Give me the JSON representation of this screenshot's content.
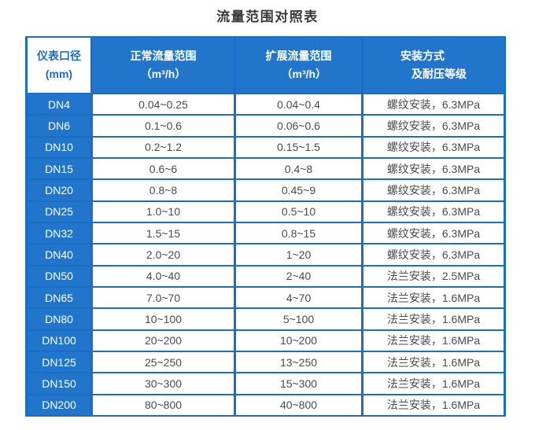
{
  "page": {
    "title": "流量范围对照表"
  },
  "colors": {
    "accent_blue": "#2176cb",
    "border_blue": "#1b6ec6",
    "data_text": "#4b4b4b",
    "title_text": "#3a3a3a"
  },
  "chart_data": {
    "type": "table",
    "title": "流量范围对照表",
    "columns": [
      {
        "line1": "仪表口径",
        "line2": "(mm)"
      },
      {
        "line1": "正常流量范围",
        "line2": "（m³/h）"
      },
      {
        "line1": "扩展流量范围",
        "line2": "（m³/h）"
      },
      {
        "line1": "安装方式",
        "line2": "及耐压等级"
      }
    ],
    "rows": [
      [
        "DN4",
        "0.04~0.25",
        "0.04~0.4",
        "螺纹安装，6.3MPa"
      ],
      [
        "DN6",
        "0.1~0.6",
        "0.06~0.6",
        "螺纹安装，6.3MPa"
      ],
      [
        "DN10",
        "0.2~1.2",
        "0.15~1.5",
        "螺纹安装，6.3MPa"
      ],
      [
        "DN15",
        "0.6~6",
        "0.4~8",
        "螺纹安装，6.3MPa"
      ],
      [
        "DN20",
        "0.8~8",
        "0.45~9",
        "螺纹安装，6.3MPa"
      ],
      [
        "DN25",
        "1.0~10",
        "0.5~10",
        "螺纹安装，6.3MPa"
      ],
      [
        "DN32",
        "1.5~15",
        "0.8~15",
        "螺纹安装，6.3MPa"
      ],
      [
        "DN40",
        "2.0~20",
        "1~20",
        "螺纹安装，6.3MPa"
      ],
      [
        "DN50",
        "4.0~40",
        "2~40",
        "法兰安装，2.5MPa"
      ],
      [
        "DN65",
        "7.0~70",
        "4~70",
        "法兰安装，1.6MPa"
      ],
      [
        "DN80",
        "10~100",
        "5~100",
        "法兰安装，1.6MPa"
      ],
      [
        "DN100",
        "20~200",
        "10~200",
        "法兰安装，1.6MPa"
      ],
      [
        "DN125",
        "25~250",
        "13~250",
        "法兰安装，1.6MPa"
      ],
      [
        "DN150",
        "30~300",
        "15~300",
        "法兰安装，1.6MPa"
      ],
      [
        "DN200",
        "80~800",
        "40~800",
        "法兰安装，1.6MPa"
      ]
    ]
  }
}
